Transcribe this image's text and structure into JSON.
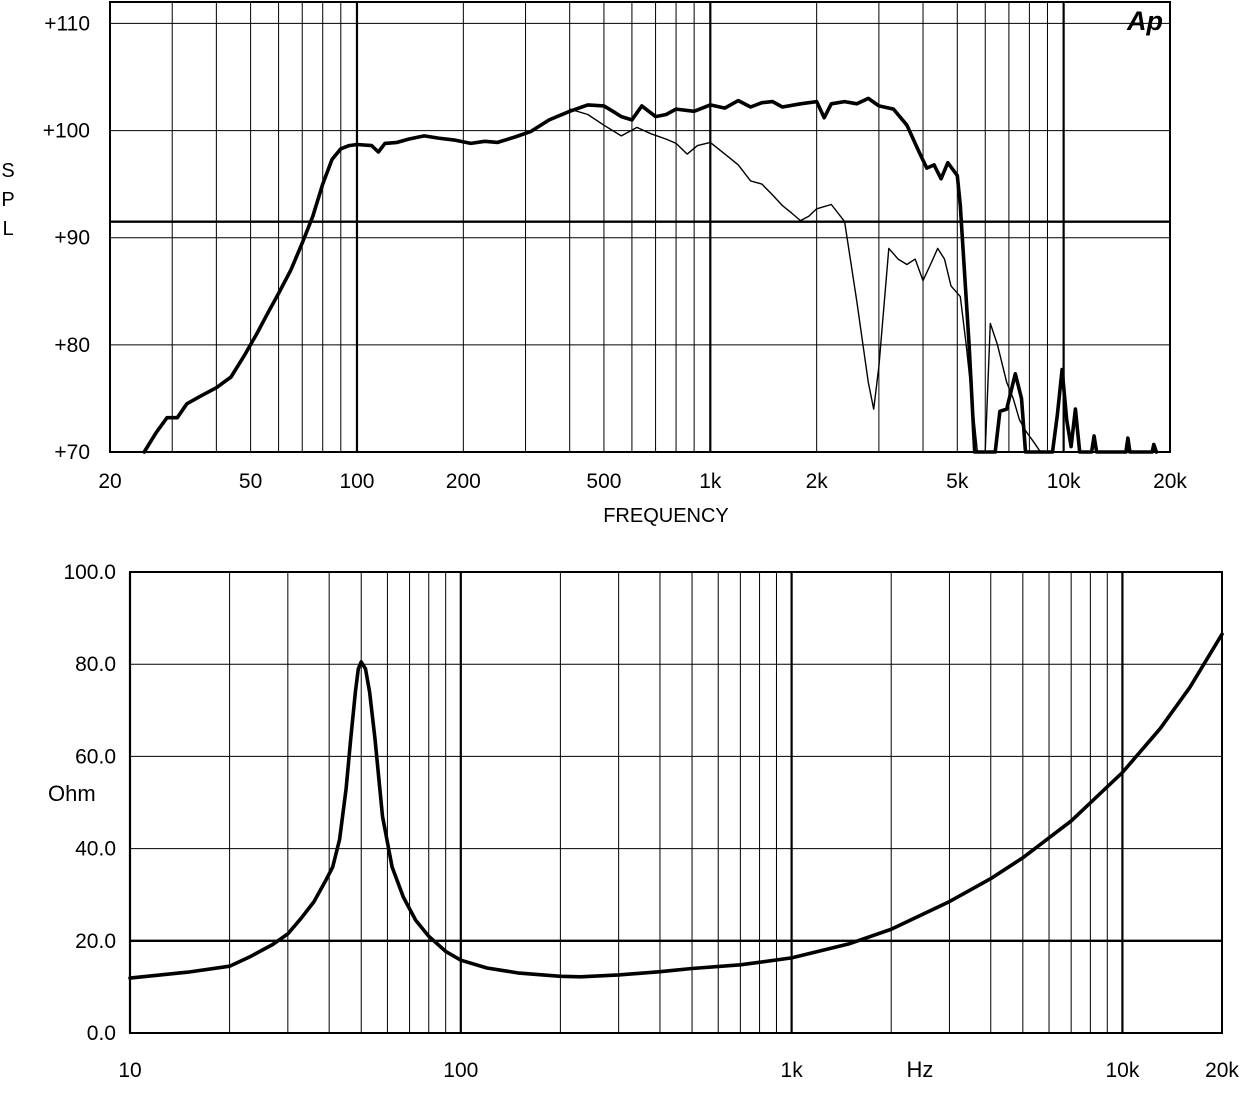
{
  "chart_data": [
    {
      "type": "line",
      "brand_mark": "Ap",
      "ylabel_letters": [
        "S",
        "P",
        "L"
      ],
      "xlabel": "FREQUENCY",
      "x_scale": "log",
      "xlim": [
        20,
        20000
      ],
      "ylim": [
        70,
        112
      ],
      "grid": true,
      "x_ticks": [
        {
          "value": 20,
          "label": "20"
        },
        {
          "value": 50,
          "label": "50"
        },
        {
          "value": 100,
          "label": "100"
        },
        {
          "value": 200,
          "label": "200"
        },
        {
          "value": 500,
          "label": "500"
        },
        {
          "value": 1000,
          "label": "1k"
        },
        {
          "value": 2000,
          "label": "2k"
        },
        {
          "value": 5000,
          "label": "5k"
        },
        {
          "value": 10000,
          "label": "10k"
        },
        {
          "value": 20000,
          "label": "20k"
        }
      ],
      "y_ticks": [
        {
          "value": 70,
          "label": "+70"
        },
        {
          "value": 80,
          "label": "+80"
        },
        {
          "value": 90,
          "label": "+90"
        },
        {
          "value": 100,
          "label": "+100"
        },
        {
          "value": 110,
          "label": "+110"
        }
      ],
      "reference_lines": [
        91.5
      ],
      "series": [
        {
          "style": "thick",
          "points": [
            [
              25,
              70
            ],
            [
              27,
              71.8
            ],
            [
              29,
              73.2
            ],
            [
              31,
              73.2
            ],
            [
              33,
              74.5
            ],
            [
              36,
              75.2
            ],
            [
              40,
              76
            ],
            [
              44,
              77
            ],
            [
              48,
              79
            ],
            [
              52,
              81
            ],
            [
              56,
              83
            ],
            [
              60,
              84.8
            ],
            [
              65,
              87
            ],
            [
              70,
              89.5
            ],
            [
              75,
              92
            ],
            [
              80,
              95
            ],
            [
              85,
              97.3
            ],
            [
              90,
              98.3
            ],
            [
              95,
              98.6
            ],
            [
              100,
              98.7
            ],
            [
              110,
              98.6
            ],
            [
              115,
              98
            ],
            [
              120,
              98.8
            ],
            [
              130,
              98.9
            ],
            [
              140,
              99.2
            ],
            [
              155,
              99.5
            ],
            [
              170,
              99.3
            ],
            [
              190,
              99.1
            ],
            [
              210,
              98.8
            ],
            [
              230,
              99
            ],
            [
              250,
              98.9
            ],
            [
              280,
              99.4
            ],
            [
              310,
              99.9
            ],
            [
              350,
              101
            ],
            [
              400,
              101.8
            ],
            [
              450,
              102.4
            ],
            [
              500,
              102.3
            ],
            [
              530,
              101.8
            ],
            [
              560,
              101.3
            ],
            [
              600,
              101
            ],
            [
              640,
              102.3
            ],
            [
              700,
              101.3
            ],
            [
              750,
              101.5
            ],
            [
              800,
              102
            ],
            [
              900,
              101.8
            ],
            [
              1000,
              102.4
            ],
            [
              1100,
              102.1
            ],
            [
              1200,
              102.8
            ],
            [
              1300,
              102.2
            ],
            [
              1400,
              102.6
            ],
            [
              1500,
              102.7
            ],
            [
              1600,
              102.2
            ],
            [
              1800,
              102.5
            ],
            [
              2000,
              102.7
            ],
            [
              2100,
              101.2
            ],
            [
              2200,
              102.5
            ],
            [
              2400,
              102.7
            ],
            [
              2600,
              102.5
            ],
            [
              2800,
              103
            ],
            [
              3000,
              102.3
            ],
            [
              3300,
              102
            ],
            [
              3600,
              100.5
            ],
            [
              3900,
              98
            ],
            [
              4100,
              96.5
            ],
            [
              4300,
              96.8
            ],
            [
              4500,
              95.5
            ],
            [
              4700,
              97
            ],
            [
              5000,
              95.8
            ],
            [
              5100,
              93
            ],
            [
              5400,
              80
            ],
            [
              5600,
              70
            ],
            [
              6400,
              70
            ],
            [
              6600,
              73.8
            ],
            [
              6900,
              74
            ],
            [
              7300,
              77.3
            ],
            [
              7600,
              75
            ],
            [
              7800,
              70
            ],
            [
              9300,
              70
            ],
            [
              9600,
              73.5
            ],
            [
              9900,
              77.7
            ],
            [
              10200,
              73
            ],
            [
              10500,
              70.5
            ],
            [
              10800,
              74
            ],
            [
              11100,
              70
            ],
            [
              12000,
              70
            ],
            [
              12200,
              71.5
            ],
            [
              12400,
              70
            ],
            [
              15000,
              70
            ],
            [
              15200,
              71.3
            ],
            [
              15400,
              70
            ],
            [
              17800,
              70
            ],
            [
              18000,
              70.7
            ],
            [
              18300,
              70
            ]
          ]
        },
        {
          "style": "thin",
          "points": [
            [
              400,
              102
            ],
            [
              450,
              101.5
            ],
            [
              500,
              100.5
            ],
            [
              560,
              99.5
            ],
            [
              620,
              100.3
            ],
            [
              680,
              99.7
            ],
            [
              750,
              99.2
            ],
            [
              800,
              98.8
            ],
            [
              860,
              97.8
            ],
            [
              920,
              98.6
            ],
            [
              1000,
              98.9
            ],
            [
              1100,
              97.8
            ],
            [
              1200,
              96.8
            ],
            [
              1300,
              95.3
            ],
            [
              1400,
              95
            ],
            [
              1500,
              94
            ],
            [
              1600,
              93
            ],
            [
              1700,
              92.3
            ],
            [
              1800,
              91.6
            ],
            [
              1900,
              92
            ],
            [
              2000,
              92.7
            ],
            [
              2200,
              93.1
            ],
            [
              2400,
              91.5
            ],
            [
              2600,
              84
            ],
            [
              2800,
              76.5
            ],
            [
              2900,
              74
            ],
            [
              3000,
              78
            ],
            [
              3200,
              89
            ],
            [
              3400,
              88
            ],
            [
              3600,
              87.5
            ],
            [
              3800,
              88
            ],
            [
              4000,
              86
            ],
            [
              4200,
              87.5
            ],
            [
              4400,
              89
            ],
            [
              4600,
              88
            ],
            [
              4800,
              85.5
            ],
            [
              5100,
              84.5
            ],
            [
              5300,
              80
            ],
            [
              5500,
              75
            ],
            [
              5700,
              70
            ],
            [
              6000,
              70
            ],
            [
              6200,
              82
            ],
            [
              6500,
              80
            ],
            [
              6900,
              76.5
            ],
            [
              7200,
              75
            ],
            [
              7500,
              73
            ],
            [
              7800,
              72
            ],
            [
              8200,
              71
            ],
            [
              8600,
              70
            ]
          ]
        }
      ]
    },
    {
      "type": "line",
      "ylabel": "Ohm",
      "xlabel": "Hz",
      "x_scale": "log",
      "xlim": [
        10,
        20000
      ],
      "ylim": [
        0,
        100
      ],
      "grid": true,
      "x_ticks": [
        {
          "value": 10,
          "label": "10"
        },
        {
          "value": 100,
          "label": "100"
        },
        {
          "value": 1000,
          "label": "1k"
        },
        {
          "value": 10000,
          "label": "10k"
        },
        {
          "value": 20000,
          "label": "20k"
        }
      ],
      "y_ticks": [
        {
          "value": 0,
          "label": "0.0"
        },
        {
          "value": 20,
          "label": "20.0"
        },
        {
          "value": 40,
          "label": "40.0"
        },
        {
          "value": 60,
          "label": "60.0"
        },
        {
          "value": 80,
          "label": "80.0"
        },
        {
          "value": 100,
          "label": "100.0"
        }
      ],
      "reference_lines": [
        20
      ],
      "series": [
        {
          "style": "thick",
          "points": [
            [
              10,
              11.9
            ],
            [
              15,
              13.2
            ],
            [
              20,
              14.5
            ],
            [
              23,
              16.5
            ],
            [
              27,
              19.2
            ],
            [
              30,
              21.5
            ],
            [
              33,
              25
            ],
            [
              36,
              28.5
            ],
            [
              39,
              33
            ],
            [
              41,
              36
            ],
            [
              43,
              42
            ],
            [
              45,
              53
            ],
            [
              46.5,
              64
            ],
            [
              48,
              74
            ],
            [
              49,
              79
            ],
            [
              50,
              80.5
            ],
            [
              51.5,
              79
            ],
            [
              53,
              74
            ],
            [
              55,
              64
            ],
            [
              58,
              47
            ],
            [
              62,
              36
            ],
            [
              67,
              29.5
            ],
            [
              73,
              24.5
            ],
            [
              80,
              21
            ],
            [
              90,
              17.7
            ],
            [
              100,
              15.8
            ],
            [
              120,
              14.1
            ],
            [
              150,
              13
            ],
            [
              200,
              12.3
            ],
            [
              230,
              12.2
            ],
            [
              300,
              12.6
            ],
            [
              400,
              13.3
            ],
            [
              500,
              14
            ],
            [
              700,
              14.8
            ],
            [
              1000,
              16.3
            ],
            [
              1500,
              19.4
            ],
            [
              2000,
              22.5
            ],
            [
              3000,
              28.5
            ],
            [
              4000,
              33.5
            ],
            [
              5000,
              38
            ],
            [
              7000,
              46
            ],
            [
              10000,
              56.5
            ],
            [
              13000,
              66
            ],
            [
              16000,
              75
            ],
            [
              20000,
              86.5
            ]
          ]
        }
      ]
    }
  ]
}
